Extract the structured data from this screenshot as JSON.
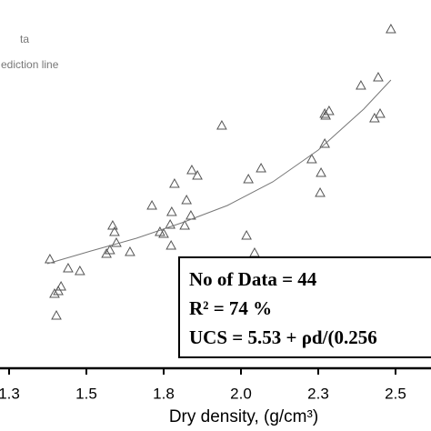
{
  "chart_data": {
    "type": "scatter",
    "xlabel": "Dry density, (g/cm³)",
    "xlim": [
      1.2206,
      2.6147
    ],
    "ylim": [
      0,
      40.5
    ],
    "xticks": [
      {
        "value": 1.25,
        "label": "1.3"
      },
      1.5,
      {
        "value": 1.75,
        "label": "1.8"
      },
      {
        "value": 2.0,
        "label": "2.0"
      },
      {
        "value": 2.25,
        "label": "2.3"
      },
      2.5
    ],
    "series": [
      {
        "name": "ta",
        "kind": "scatter",
        "color": "#555555",
        "x": [
          2.485,
          2.444,
          2.388,
          2.45,
          2.432,
          2.285,
          2.271,
          2.274,
          1.938,
          2.271,
          2.229,
          2.259,
          2.065,
          2.024,
          2.256,
          1.841,
          1.859,
          1.785,
          1.824,
          1.712,
          1.838,
          1.776,
          1.585,
          1.591,
          1.771,
          1.818,
          1.738,
          1.75,
          1.597,
          1.641,
          1.774,
          1.576,
          1.565,
          2.018,
          2.044,
          1.382,
          1.441,
          1.479,
          1.418,
          1.409,
          1.397,
          1.403,
          2.038,
          2.024
        ],
        "values": [
          37.3,
          32.0,
          31.1,
          28.0,
          27.5,
          28.3,
          28.0,
          27.8,
          26.7,
          24.7,
          23.0,
          21.5,
          22.0,
          20.8,
          19.3,
          21.8,
          21.2,
          20.3,
          18.5,
          17.9,
          16.8,
          17.2,
          15.7,
          15.0,
          15.8,
          15.7,
          15.0,
          14.8,
          13.8,
          12.8,
          13.5,
          13.0,
          12.6,
          14.6,
          12.7,
          12.0,
          11.0,
          10.7,
          9.0,
          8.5,
          8.2,
          5.8,
          11.0,
          10.5
        ]
      },
      {
        "name": "ediction line",
        "kind": "line",
        "color": "#777777",
        "x": [
          1.374,
          1.515,
          1.662,
          1.809,
          1.956,
          2.103,
          2.25,
          2.397,
          2.485
        ],
        "values": [
          11.5,
          12.9,
          14.3,
          16.0,
          17.9,
          20.5,
          24.0,
          28.5,
          31.7
        ]
      }
    ],
    "annotations": [
      "No of Data = 44",
      "R² = 74 %",
      "UCS = 5.53 + ρd/(0.256"
    ]
  }
}
